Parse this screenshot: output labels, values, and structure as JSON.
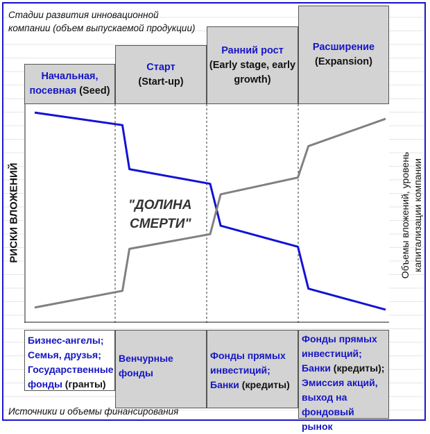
{
  "header": {
    "caption_line1": "Стадии развития инновационной",
    "caption_line2": "компании (объем выпускаемой продукции)"
  },
  "stages": [
    {
      "name_line1": "Начальная,",
      "name_line2_blue": "посевная",
      "name_line2_black": " (Seed)"
    },
    {
      "name": "Старт",
      "name_en": "(Start-up)"
    },
    {
      "name": "Ранний рост",
      "name_en_line1": "(Early stage, early",
      "name_en_line2": "growth)"
    },
    {
      "name": "Расширение",
      "name_en": "(Expansion)"
    }
  ],
  "axes": {
    "left_label": "РИСКИ ВЛОЖЕНИЙ",
    "right_label_line1": "Объемы вложений, уровень",
    "right_label_line2": "капитализации компании"
  },
  "annotation": {
    "line1": "\"ДОЛИНА",
    "line2": "СМЕРТИ\""
  },
  "chart_data": {
    "type": "line",
    "series": [
      {
        "color": "#1212d6",
        "values": [
          [
            0,
            97
          ],
          [
            25,
            91
          ],
          [
            27,
            70
          ],
          [
            50,
            63
          ],
          [
            53,
            43
          ],
          [
            75,
            33
          ],
          [
            78,
            13
          ],
          [
            100,
            3
          ]
        ]
      },
      {
        "color": "#808080",
        "values": [
          [
            0,
            4
          ],
          [
            25,
            12
          ],
          [
            27,
            32
          ],
          [
            50,
            39
          ],
          [
            53,
            58
          ],
          [
            75,
            66
          ],
          [
            78,
            81
          ],
          [
            100,
            94
          ]
        ]
      }
    ]
  },
  "funding": [
    {
      "lines": [
        {
          "blue": "Бизнес-ангелы;"
        },
        {
          "blue": "Семья, друзья;"
        },
        {
          "blue": "Государственные"
        },
        {
          "blue": "фонды",
          "black": " (гранты)"
        }
      ]
    },
    {
      "lines": [
        {
          "blue": "Венчурные"
        },
        {
          "blue": "фонды"
        }
      ]
    },
    {
      "lines": [
        {
          "blue": "Фонды прямых"
        },
        {
          "blue": "инвестиций;"
        },
        {
          "blue": "Банки",
          "black": " (кредиты)"
        }
      ]
    },
    {
      "lines": [
        {
          "blue": "Фонды прямых"
        },
        {
          "blue": "инвестиций;"
        },
        {
          "blue": "Банки",
          "black": " (кредиты);"
        },
        {
          "blue": "Эмиссия акций,"
        },
        {
          "blue": "выход на"
        },
        {
          "blue": "фондовый рынок"
        }
      ]
    }
  ],
  "footer": {
    "caption": "Источники и объемы финансирования"
  },
  "colors": {
    "frame": "#1b17c8",
    "stage_fill": "#d3d3d3",
    "risk_line": "#1212d6",
    "volume_line": "#808080",
    "blue_text": "#1515c4"
  }
}
